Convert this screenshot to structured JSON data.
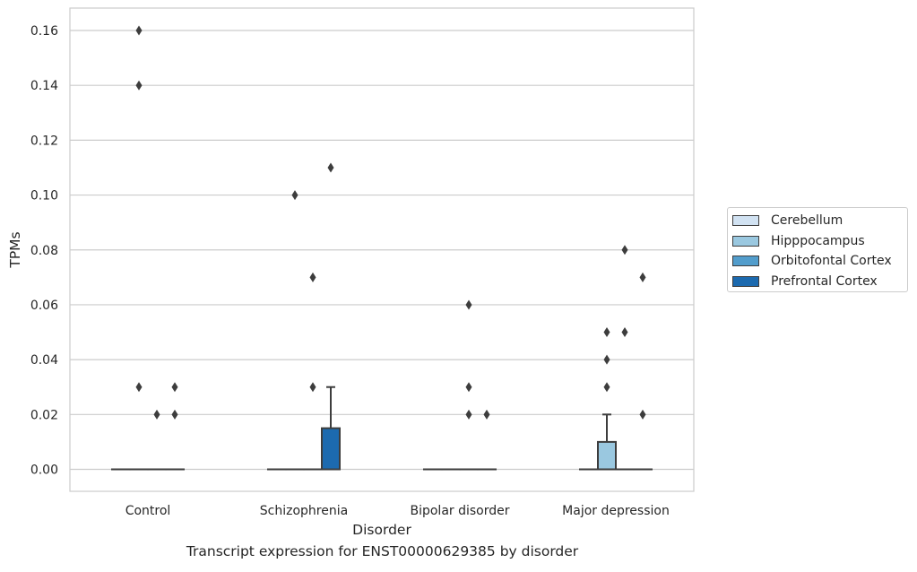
{
  "caption": "Transcript expression for ENST00000629385 by disorder",
  "colors": {
    "Cerebellum": "#d1e2f2",
    "Hipppocampus": "#9ac8e0",
    "Orbitofontal Cortex": "#529dcc",
    "Prefrontal Cortex": "#1c6aaf",
    "grid": "#cccccc",
    "box_edge": "#3d3d3d"
  },
  "chart_data": {
    "type": "box",
    "title": "",
    "xlabel": "Disorder",
    "ylabel": "TPMs",
    "categories": [
      "Control",
      "Schizophrenia",
      "Bipolar disorder",
      "Major depression"
    ],
    "hue": [
      "Cerebellum",
      "Hipppocampus",
      "Orbitofontal Cortex",
      "Prefrontal Cortex"
    ],
    "ylim": [
      -0.008,
      0.168
    ],
    "yticks": [
      "0.00",
      "0.02",
      "0.04",
      "0.06",
      "0.08",
      "0.10",
      "0.12",
      "0.14",
      "0.16"
    ],
    "grid": true,
    "legend_position": "outside-right",
    "boxes": [
      {
        "category": "Control",
        "group": "Cerebellum",
        "q1": 0,
        "median": 0,
        "q3": 0,
        "whisker_low": 0,
        "whisker_high": 0,
        "outliers": []
      },
      {
        "category": "Control",
        "group": "Hipppocampus",
        "q1": 0,
        "median": 0,
        "q3": 0,
        "whisker_low": 0,
        "whisker_high": 0,
        "outliers": [
          0.16,
          0.14,
          0.03
        ]
      },
      {
        "category": "Control",
        "group": "Orbitofontal Cortex",
        "q1": 0,
        "median": 0,
        "q3": 0,
        "whisker_low": 0,
        "whisker_high": 0,
        "outliers": [
          0.02
        ]
      },
      {
        "category": "Control",
        "group": "Prefrontal Cortex",
        "q1": 0,
        "median": 0,
        "q3": 0,
        "whisker_low": 0,
        "whisker_high": 0,
        "outliers": [
          0.03,
          0.02
        ]
      },
      {
        "category": "Schizophrenia",
        "group": "Cerebellum",
        "q1": 0,
        "median": 0,
        "q3": 0,
        "whisker_low": 0,
        "whisker_high": 0,
        "outliers": []
      },
      {
        "category": "Schizophrenia",
        "group": "Hipppocampus",
        "q1": 0,
        "median": 0,
        "q3": 0,
        "whisker_low": 0,
        "whisker_high": 0,
        "outliers": [
          0.1
        ]
      },
      {
        "category": "Schizophrenia",
        "group": "Orbitofontal Cortex",
        "q1": 0,
        "median": 0,
        "q3": 0,
        "whisker_low": 0,
        "whisker_high": 0,
        "outliers": [
          0.07,
          0.03
        ]
      },
      {
        "category": "Schizophrenia",
        "group": "Prefrontal Cortex",
        "q1": 0,
        "median": 0,
        "q3": 0.015,
        "whisker_low": 0,
        "whisker_high": 0.03,
        "outliers": [
          0.11
        ]
      },
      {
        "category": "Bipolar disorder",
        "group": "Cerebellum",
        "q1": 0,
        "median": 0,
        "q3": 0,
        "whisker_low": 0,
        "whisker_high": 0,
        "outliers": []
      },
      {
        "category": "Bipolar disorder",
        "group": "Hipppocampus",
        "q1": 0,
        "median": 0,
        "q3": 0,
        "whisker_low": 0,
        "whisker_high": 0,
        "outliers": []
      },
      {
        "category": "Bipolar disorder",
        "group": "Orbitofontal Cortex",
        "q1": 0,
        "median": 0,
        "q3": 0,
        "whisker_low": 0,
        "whisker_high": 0,
        "outliers": [
          0.06,
          0.03,
          0.02
        ]
      },
      {
        "category": "Bipolar disorder",
        "group": "Prefrontal Cortex",
        "q1": 0,
        "median": 0,
        "q3": 0,
        "whisker_low": 0,
        "whisker_high": 0,
        "outliers": [
          0.02
        ]
      },
      {
        "category": "Major depression",
        "group": "Cerebellum",
        "q1": 0,
        "median": 0,
        "q3": 0,
        "whisker_low": 0,
        "whisker_high": 0,
        "outliers": []
      },
      {
        "category": "Major depression",
        "group": "Hipppocampus",
        "q1": 0,
        "median": 0,
        "q3": 0.01,
        "whisker_low": 0,
        "whisker_high": 0.02,
        "outliers": [
          0.05,
          0.04,
          0.03
        ]
      },
      {
        "category": "Major depression",
        "group": "Orbitofontal Cortex",
        "q1": 0,
        "median": 0,
        "q3": 0,
        "whisker_low": 0,
        "whisker_high": 0,
        "outliers": [
          0.08,
          0.05
        ]
      },
      {
        "category": "Major depression",
        "group": "Prefrontal Cortex",
        "q1": 0,
        "median": 0,
        "q3": 0,
        "whisker_low": 0,
        "whisker_high": 0,
        "outliers": [
          0.07,
          0.02
        ]
      }
    ]
  }
}
